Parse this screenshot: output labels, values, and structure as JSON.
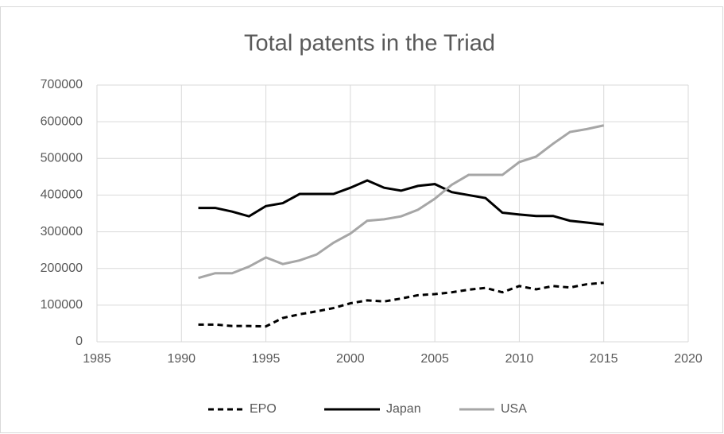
{
  "chart_data": {
    "type": "line",
    "title": "Total patents in the Triad",
    "x": [
      1991,
      1992,
      1993,
      1994,
      1995,
      1996,
      1997,
      1998,
      1999,
      2000,
      2001,
      2002,
      2003,
      2004,
      2005,
      2006,
      2007,
      2008,
      2009,
      2010,
      2011,
      2012,
      2013,
      2014,
      2015
    ],
    "series": [
      {
        "name": "EPO",
        "color": "#000000",
        "dash": true,
        "values": [
          47000,
          47000,
          43000,
          43000,
          42000,
          65000,
          75000,
          83000,
          92000,
          105000,
          113000,
          110000,
          118000,
          127000,
          130000,
          135000,
          142000,
          147000,
          135000,
          152000,
          143000,
          152000,
          148000,
          157000,
          161000
        ]
      },
      {
        "name": "Japan",
        "color": "#000000",
        "dash": false,
        "values": [
          365000,
          365000,
          355000,
          342000,
          370000,
          378000,
          403000,
          403000,
          403000,
          420000,
          440000,
          420000,
          412000,
          425000,
          430000,
          408000,
          400000,
          392000,
          352000,
          347000,
          343000,
          343000,
          330000,
          325000,
          320000
        ]
      },
      {
        "name": "USA",
        "color": "#a6a6a6",
        "dash": false,
        "values": [
          174000,
          187000,
          187000,
          205000,
          230000,
          212000,
          222000,
          238000,
          270000,
          295000,
          330000,
          334000,
          342000,
          360000,
          390000,
          428000,
          455000,
          455000,
          455000,
          490000,
          505000,
          540000,
          572000,
          580000,
          590000
        ]
      }
    ],
    "xlim": [
      1985,
      2020
    ],
    "xticks": [
      1985,
      1990,
      1995,
      2000,
      2005,
      2010,
      2015,
      2020
    ],
    "ylim": [
      0,
      700000
    ],
    "yticks": [
      0,
      100000,
      200000,
      300000,
      400000,
      500000,
      600000,
      700000
    ],
    "grid": true,
    "legend": "bottom"
  }
}
